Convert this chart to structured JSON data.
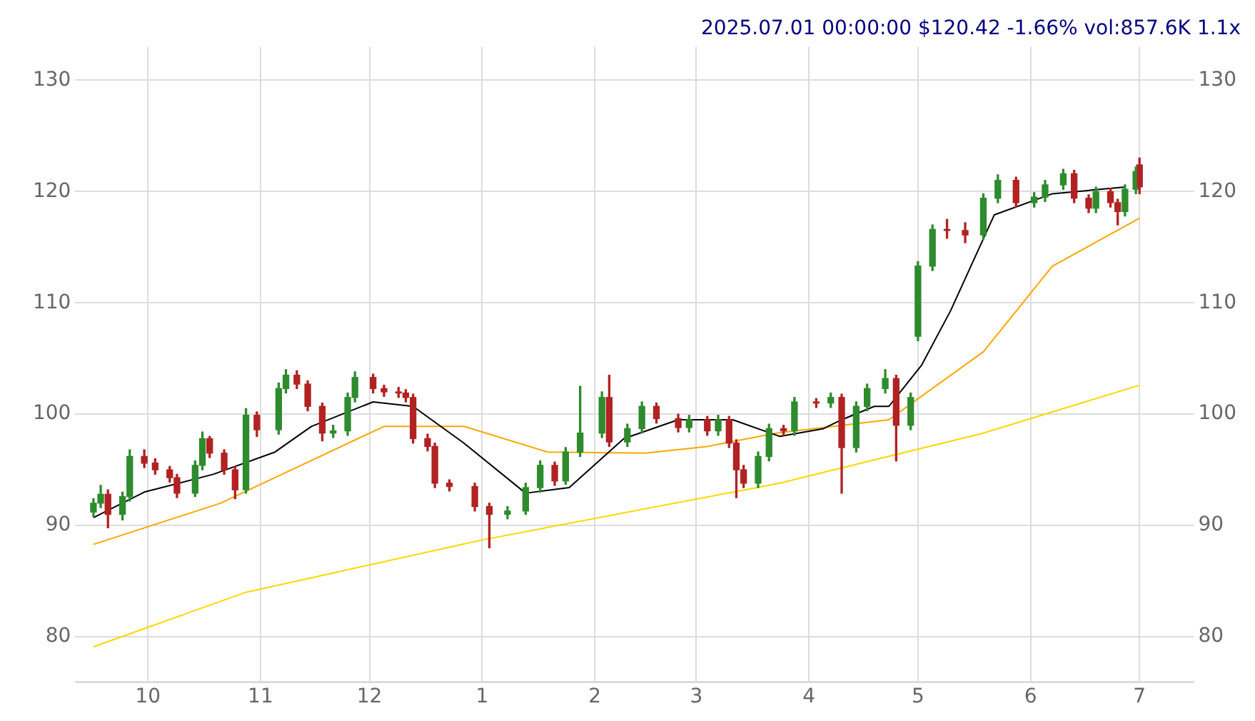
{
  "chart_data": {
    "type": "candlestick",
    "title": "2025.07.01 00:00:00 $120.42 -1.66% vol:857.6K 1.1x",
    "x": [
      "2024-09-16",
      "2024-09-18",
      "2024-09-20",
      "2024-09-24",
      "2024-09-26",
      "2024-09-30",
      "2024-10-03",
      "2024-10-07",
      "2024-10-09",
      "2024-10-14",
      "2024-10-16",
      "2024-10-18",
      "2024-10-22",
      "2024-10-25",
      "2024-10-28",
      "2024-10-31",
      "2024-11-06",
      "2024-11-08",
      "2024-11-11",
      "2024-11-14",
      "2024-11-18",
      "2024-11-21",
      "2024-11-25",
      "2024-11-27",
      "2024-12-02",
      "2024-12-05",
      "2024-12-09",
      "2024-12-11",
      "2024-12-13",
      "2024-12-17",
      "2024-12-19",
      "2024-12-23",
      "2024-12-30",
      "2025-01-03",
      "2025-01-08",
      "2025-01-13",
      "2025-01-17",
      "2025-01-21",
      "2025-01-24",
      "2025-01-28",
      "2025-02-03",
      "2025-02-05",
      "2025-02-10",
      "2025-02-14",
      "2025-02-18",
      "2025-02-24",
      "2025-02-27",
      "2025-03-04",
      "2025-03-07",
      "2025-03-10",
      "2025-03-12",
      "2025-03-14",
      "2025-03-18",
      "2025-03-21",
      "2025-03-25",
      "2025-03-28",
      "2025-04-03",
      "2025-04-07",
      "2025-04-10",
      "2025-04-14",
      "2025-04-17",
      "2025-04-22",
      "2025-04-25",
      "2025-04-29",
      "2025-05-01",
      "2025-05-05",
      "2025-05-09",
      "2025-05-14",
      "2025-05-19",
      "2025-05-23",
      "2025-05-28",
      "2025-06-02",
      "2025-06-05",
      "2025-06-10",
      "2025-06-13",
      "2025-06-17",
      "2025-06-19",
      "2025-06-23",
      "2025-06-25",
      "2025-06-27",
      "2025-06-30",
      "2025-07-01"
    ],
    "ohlc": [
      [
        91.2,
        92.4,
        90.8,
        92.0
      ],
      [
        92.0,
        93.6,
        91.6,
        92.8
      ],
      [
        92.8,
        93.2,
        89.8,
        91.0
      ],
      [
        91.0,
        93.0,
        90.5,
        92.6
      ],
      [
        92.6,
        96.8,
        92.2,
        96.2
      ],
      [
        96.2,
        96.8,
        95.2,
        95.6
      ],
      [
        95.6,
        96.0,
        94.6,
        95.0
      ],
      [
        95.0,
        95.3,
        93.9,
        94.3
      ],
      [
        94.3,
        94.6,
        92.5,
        92.9
      ],
      [
        92.9,
        95.8,
        92.6,
        95.4
      ],
      [
        95.4,
        98.4,
        95.0,
        97.8
      ],
      [
        97.8,
        98.0,
        96.1,
        96.5
      ],
      [
        96.5,
        96.8,
        94.6,
        95.0
      ],
      [
        95.0,
        95.3,
        92.4,
        93.2
      ],
      [
        93.2,
        100.5,
        92.9,
        99.9
      ],
      [
        99.9,
        100.2,
        98.0,
        98.6
      ],
      [
        98.6,
        102.8,
        98.2,
        102.3
      ],
      [
        102.3,
        104.0,
        101.9,
        103.5
      ],
      [
        103.5,
        103.9,
        102.3,
        102.7
      ],
      [
        102.7,
        103.0,
        100.3,
        100.7
      ],
      [
        100.7,
        101.0,
        97.6,
        98.3
      ],
      [
        98.3,
        99.0,
        97.9,
        98.5
      ],
      [
        98.5,
        101.9,
        98.1,
        101.5
      ],
      [
        101.5,
        103.8,
        101.1,
        103.3
      ],
      [
        103.3,
        103.6,
        101.9,
        102.3
      ],
      [
        102.3,
        102.6,
        101.6,
        102.0
      ],
      [
        102.0,
        102.4,
        101.5,
        101.9
      ],
      [
        101.9,
        102.2,
        101.1,
        101.5
      ],
      [
        101.5,
        101.8,
        97.4,
        97.8
      ],
      [
        97.8,
        98.2,
        96.7,
        97.1
      ],
      [
        97.1,
        97.4,
        93.4,
        93.8
      ],
      [
        93.8,
        94.1,
        93.1,
        93.5
      ],
      [
        93.5,
        93.8,
        91.3,
        91.7
      ],
      [
        91.7,
        92.0,
        88.0,
        91.0
      ],
      [
        91.0,
        91.7,
        90.6,
        91.3
      ],
      [
        91.3,
        93.8,
        91.0,
        93.4
      ],
      [
        93.4,
        95.8,
        93.0,
        95.4
      ],
      [
        95.4,
        95.7,
        93.6,
        94.0
      ],
      [
        94.0,
        97.0,
        93.7,
        96.6
      ],
      [
        96.6,
        102.5,
        96.2,
        98.3
      ],
      [
        98.3,
        102.0,
        97.9,
        101.5
      ],
      [
        101.5,
        103.5,
        97.1,
        97.5
      ],
      [
        97.5,
        99.1,
        97.1,
        98.7
      ],
      [
        98.7,
        101.1,
        98.3,
        100.7
      ],
      [
        100.7,
        101.0,
        99.2,
        99.6
      ],
      [
        99.6,
        100.0,
        98.4,
        98.8
      ],
      [
        98.8,
        99.9,
        98.4,
        99.5
      ],
      [
        99.5,
        99.8,
        98.1,
        98.5
      ],
      [
        98.5,
        99.9,
        98.1,
        99.5
      ],
      [
        99.5,
        99.8,
        97.0,
        97.4
      ],
      [
        97.4,
        97.7,
        92.5,
        95.0
      ],
      [
        95.0,
        95.4,
        93.4,
        93.8
      ],
      [
        93.8,
        96.6,
        93.4,
        96.2
      ],
      [
        96.2,
        99.1,
        95.8,
        98.7
      ],
      [
        98.7,
        99.0,
        98.1,
        98.5
      ],
      [
        98.5,
        101.5,
        98.1,
        101.1
      ],
      [
        101.1,
        101.4,
        100.6,
        101.0
      ],
      [
        101.0,
        101.9,
        100.6,
        101.5
      ],
      [
        101.5,
        101.8,
        92.9,
        97.0
      ],
      [
        97.0,
        101.1,
        96.6,
        100.7
      ],
      [
        100.7,
        102.7,
        100.3,
        102.3
      ],
      [
        102.3,
        104.0,
        101.9,
        103.2
      ],
      [
        103.2,
        103.5,
        95.8,
        99.0
      ],
      [
        99.0,
        101.9,
        98.6,
        101.5
      ],
      [
        107.0,
        113.7,
        106.6,
        113.3
      ],
      [
        113.3,
        117.0,
        112.9,
        116.6
      ],
      [
        116.6,
        117.5,
        115.8,
        116.5
      ],
      [
        116.5,
        117.2,
        115.4,
        116.1
      ],
      [
        116.1,
        119.8,
        115.7,
        119.4
      ],
      [
        119.4,
        121.5,
        119.0,
        121.0
      ],
      [
        121.0,
        121.3,
        118.6,
        119.0
      ],
      [
        119.0,
        119.9,
        118.6,
        119.5
      ],
      [
        119.5,
        121.0,
        119.1,
        120.6
      ],
      [
        120.6,
        122.0,
        120.2,
        121.6
      ],
      [
        121.6,
        121.9,
        119.0,
        119.4
      ],
      [
        119.4,
        119.7,
        118.1,
        118.5
      ],
      [
        118.5,
        120.4,
        118.1,
        120.0
      ],
      [
        120.0,
        120.3,
        118.6,
        119.0
      ],
      [
        119.0,
        119.3,
        117.0,
        118.2
      ],
      [
        118.2,
        120.6,
        117.8,
        120.2
      ],
      [
        120.2,
        122.2,
        119.8,
        121.8
      ],
      [
        122.4,
        123.0,
        119.8,
        120.42
      ]
    ],
    "colors": [
      "#2e8b2e",
      "#2e8b2e",
      "#b22222",
      "#2e8b2e",
      "#2e8b2e",
      "#b22222",
      "#b22222",
      "#b22222",
      "#b22222",
      "#2e8b2e",
      "#2e8b2e",
      "#b22222",
      "#b22222",
      "#b22222",
      "#2e8b2e",
      "#b22222",
      "#2e8b2e",
      "#2e8b2e",
      "#b22222",
      "#b22222",
      "#b22222",
      "#2e8b2e",
      "#2e8b2e",
      "#2e8b2e",
      "#b22222",
      "#b22222",
      "#b22222",
      "#b22222",
      "#b22222",
      "#b22222",
      "#b22222",
      "#b22222",
      "#b22222",
      "#b22222",
      "#2e8b2e",
      "#2e8b2e",
      "#2e8b2e",
      "#b22222",
      "#2e8b2e",
      "#2e8b2e",
      "#2e8b2e",
      "#b22222",
      "#2e8b2e",
      "#2e8b2e",
      "#b22222",
      "#b22222",
      "#2e8b2e",
      "#b22222",
      "#2e8b2e",
      "#b22222",
      "#b22222",
      "#b22222",
      "#2e8b2e",
      "#2e8b2e",
      "#b22222",
      "#2e8b2e",
      "#b22222",
      "#2e8b2e",
      "#b22222",
      "#2e8b2e",
      "#2e8b2e",
      "#2e8b2e",
      "#b22222",
      "#2e8b2e",
      "#2e8b2e",
      "#2e8b2e",
      "#b22222",
      "#b22222",
      "#2e8b2e",
      "#2e8b2e",
      "#b22222",
      "#2e8b2e",
      "#2e8b2e",
      "#2e8b2e",
      "#b22222",
      "#b22222",
      "#2e8b2e",
      "#b22222",
      "#b22222",
      "#2e8b2e",
      "#2e8b2e",
      "#b22222"
    ],
    "series": [
      {
        "type": "line",
        "color": "#000000",
        "x": [
          "2024-09-16",
          "2024-09-30",
          "2024-10-19",
          "2024-11-05",
          "2024-11-15",
          "2024-12-02",
          "2024-12-13",
          "2024-12-27",
          "2025-01-13",
          "2025-01-25",
          "2025-02-09",
          "2025-02-24",
          "2025-03-11",
          "2025-03-24",
          "2025-04-05",
          "2025-04-10",
          "2025-04-19",
          "2025-04-23",
          "2025-05-02",
          "2025-05-10",
          "2025-05-22",
          "2025-06-07",
          "2025-06-27"
        ],
        "values": [
          90.7,
          93.0,
          94.6,
          96.6,
          98.9,
          101.1,
          100.7,
          97.4,
          92.9,
          93.4,
          97.8,
          99.5,
          99.5,
          98.0,
          98.7,
          99.5,
          100.7,
          100.7,
          104.4,
          109.3,
          117.9,
          119.8,
          120.4
        ]
      },
      {
        "type": "line",
        "color": "#ffa500",
        "x": [
          "2024-09-16",
          "2024-10-21",
          "2024-12-05",
          "2024-12-27",
          "2025-01-19",
          "2025-02-15",
          "2025-03-04",
          "2025-03-23",
          "2025-04-23",
          "2025-05-19",
          "2025-06-07",
          "2025-07-01"
        ],
        "values": [
          88.3,
          92.0,
          98.9,
          98.9,
          96.6,
          96.5,
          97.1,
          98.3,
          99.5,
          105.6,
          113.3,
          117.6
        ]
      },
      {
        "type": "line",
        "color": "#ffd700",
        "x": [
          "2024-09-16",
          "2024-10-28",
          "2025-01-01",
          "2025-03-24",
          "2025-05-19",
          "2025-07-01"
        ],
        "values": [
          79.1,
          84.0,
          88.7,
          93.8,
          98.3,
          102.6
        ]
      }
    ],
    "xlim": [
      "2024-09-11",
      "2025-07-16"
    ],
    "xticks": [
      {
        "value": "2024-10-01",
        "label": "10"
      },
      {
        "value": "2024-11-01",
        "label": "11"
      },
      {
        "value": "2024-12-01",
        "label": "12"
      },
      {
        "value": "2025-01-01",
        "label": "1"
      },
      {
        "value": "2025-02-01",
        "label": "2"
      },
      {
        "value": "2025-03-01",
        "label": "3"
      },
      {
        "value": "2025-04-01",
        "label": "4"
      },
      {
        "value": "2025-05-01",
        "label": "5"
      },
      {
        "value": "2025-06-01",
        "label": "6"
      },
      {
        "value": "2025-07-01",
        "label": "7"
      }
    ],
    "ylim": [
      76,
      133
    ],
    "yticks": [
      80,
      90,
      100,
      110,
      120,
      130
    ],
    "y2lim": [
      76,
      133
    ],
    "y2ticks": [
      80,
      90,
      100,
      110,
      120,
      130
    ],
    "grid": true,
    "legend": false
  }
}
